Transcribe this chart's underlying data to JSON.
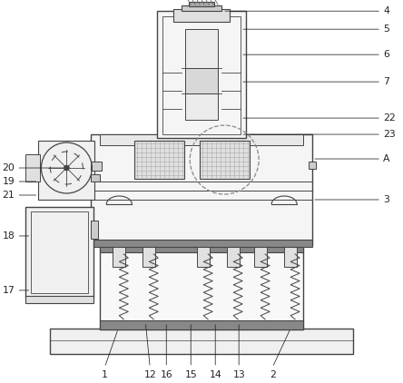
{
  "fig_width": 4.44,
  "fig_height": 4.22,
  "dpi": 100,
  "bg_color": "#ffffff",
  "lc": "#444444",
  "lc_dark": "#222222",
  "fc_light": "#f2f2f2",
  "fc_mid": "#e0e0e0",
  "fc_dark": "#888888",
  "fc_black": "#555555"
}
